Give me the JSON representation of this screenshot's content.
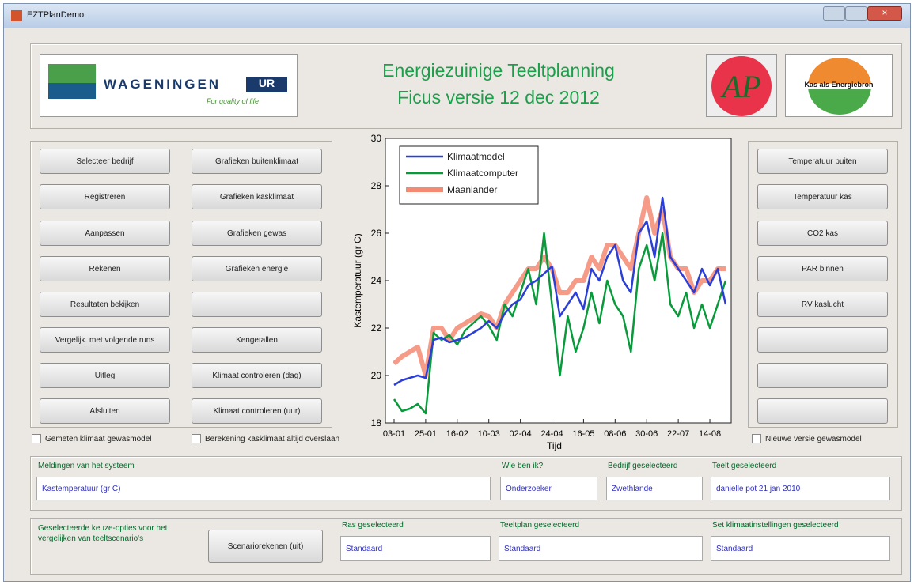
{
  "window": {
    "title": "EZTPlanDemo"
  },
  "header": {
    "title": "Energiezuinige Teeltplanning",
    "subtitle": "Ficus versie 12 dec 2012",
    "logos": {
      "wageningen": "WAGENINGEN",
      "ur": "UR",
      "tagline": "For quality of life",
      "ap": "AP",
      "kas": "Kas als Energiebron"
    }
  },
  "left_buttons": {
    "col1": [
      "Selecteer bedrijf",
      "Registreren",
      "Aanpassen",
      "Rekenen",
      "Resultaten bekijken",
      "Vergelijk. met volgende runs",
      "Uitleg",
      "Afsluiten"
    ],
    "col2": [
      "Grafieken buitenklimaat",
      "Grafieken kasklimaat",
      "Grafieken gewas",
      "Grafieken energie",
      "Kengetallen",
      "Klimaat controleren (dag)",
      "Klimaat controleren (uur)"
    ]
  },
  "right_buttons": [
    "Temperatuur buiten",
    "Temperatuur kas",
    "CO2 kas",
    "PAR binnen",
    "RV kaslucht"
  ],
  "checkboxes": [
    "Gemeten klimaat gewasmodel",
    "Berekening kasklimaat altijd overslaan",
    "Nieuwe versie gewasmodel"
  ],
  "messages": {
    "system": {
      "label": "Meldingen van het systeem",
      "value": "Kastemperatuur (gr C)"
    },
    "user": {
      "label": "Wie ben ik?",
      "value": "Onderzoeker"
    },
    "company": {
      "label": "Bedrijf geselecteerd",
      "value": "Zwethlande"
    },
    "crop": {
      "label": "Teelt geselecteerd",
      "value": "danielle pot 21 jan 2010"
    }
  },
  "selection": {
    "note": "Geselecteerde keuze-opties voor het vergelijken van teeltscenario's",
    "button": "Scenariorekenen (uit)",
    "variety": {
      "label": "Ras geselecteerd",
      "value": "Standaard"
    },
    "plan": {
      "label": "Teeltplan geselecteerd",
      "value": "Standaard"
    },
    "climate": {
      "label": "Set klimaatinstellingen geselecteerd",
      "value": "Standaard"
    }
  },
  "chart_data": {
    "type": "line",
    "xlabel": "Tijd",
    "ylabel": "Kastemperatuur (gr C)",
    "categories": [
      "03-01",
      null,
      null,
      null,
      "25-01",
      null,
      null,
      null,
      "16-02",
      null,
      null,
      null,
      "10-03",
      null,
      null,
      null,
      "02-04",
      null,
      null,
      null,
      "24-04",
      null,
      null,
      null,
      "16-05",
      null,
      null,
      null,
      "08-06",
      null,
      null,
      null,
      "30-06",
      null,
      null,
      null,
      "22-07",
      null,
      null,
      null,
      "14-08",
      null,
      null
    ],
    "ylim": [
      18,
      30
    ],
    "yticks": [
      18,
      20,
      22,
      24,
      26,
      28,
      30
    ],
    "legend": "upper left",
    "series": [
      {
        "name": "Klimaatmodel",
        "color": "#2b3fd6",
        "values": [
          19.6,
          19.8,
          19.9,
          20.0,
          19.9,
          21.5,
          21.6,
          21.4,
          21.5,
          21.6,
          21.8,
          22.0,
          22.3,
          22.0,
          22.6,
          23.0,
          23.2,
          23.8,
          24.0,
          24.3,
          24.6,
          22.5,
          23.0,
          23.5,
          22.8,
          24.5,
          24.0,
          25.0,
          25.5,
          24.0,
          23.5,
          26.0,
          26.5,
          25.0,
          27.5,
          25.0,
          24.5,
          24.0,
          23.5,
          24.5,
          23.8,
          24.5,
          23.0
        ]
      },
      {
        "name": "Klimaatcomputer",
        "color": "#0a9a3c",
        "values": [
          19.0,
          18.5,
          18.6,
          18.8,
          18.4,
          21.8,
          21.5,
          21.7,
          21.3,
          21.9,
          22.2,
          22.5,
          22.1,
          21.5,
          23.0,
          22.5,
          23.5,
          24.5,
          23.0,
          26.0,
          23.0,
          20.0,
          22.5,
          21.0,
          22.0,
          23.5,
          22.2,
          24.0,
          23.0,
          22.5,
          21.0,
          24.5,
          25.5,
          24.0,
          26.0,
          23.0,
          22.5,
          23.5,
          22.0,
          23.0,
          22.0,
          23.0,
          24.0
        ]
      },
      {
        "name": "Maanlander",
        "color": "#f58a72",
        "values": [
          20.5,
          20.8,
          21.0,
          21.2,
          20.0,
          22.0,
          22.0,
          21.5,
          22.0,
          22.2,
          22.4,
          22.6,
          22.5,
          22.0,
          23.0,
          23.5,
          24.0,
          24.5,
          24.5,
          25.0,
          24.5,
          23.5,
          23.5,
          24.0,
          24.0,
          25.0,
          24.5,
          25.5,
          25.5,
          25.0,
          24.5,
          26.0,
          27.5,
          26.0,
          27.0,
          25.0,
          24.5,
          24.5,
          23.5,
          24.0,
          24.0,
          24.5,
          24.5
        ]
      }
    ]
  }
}
